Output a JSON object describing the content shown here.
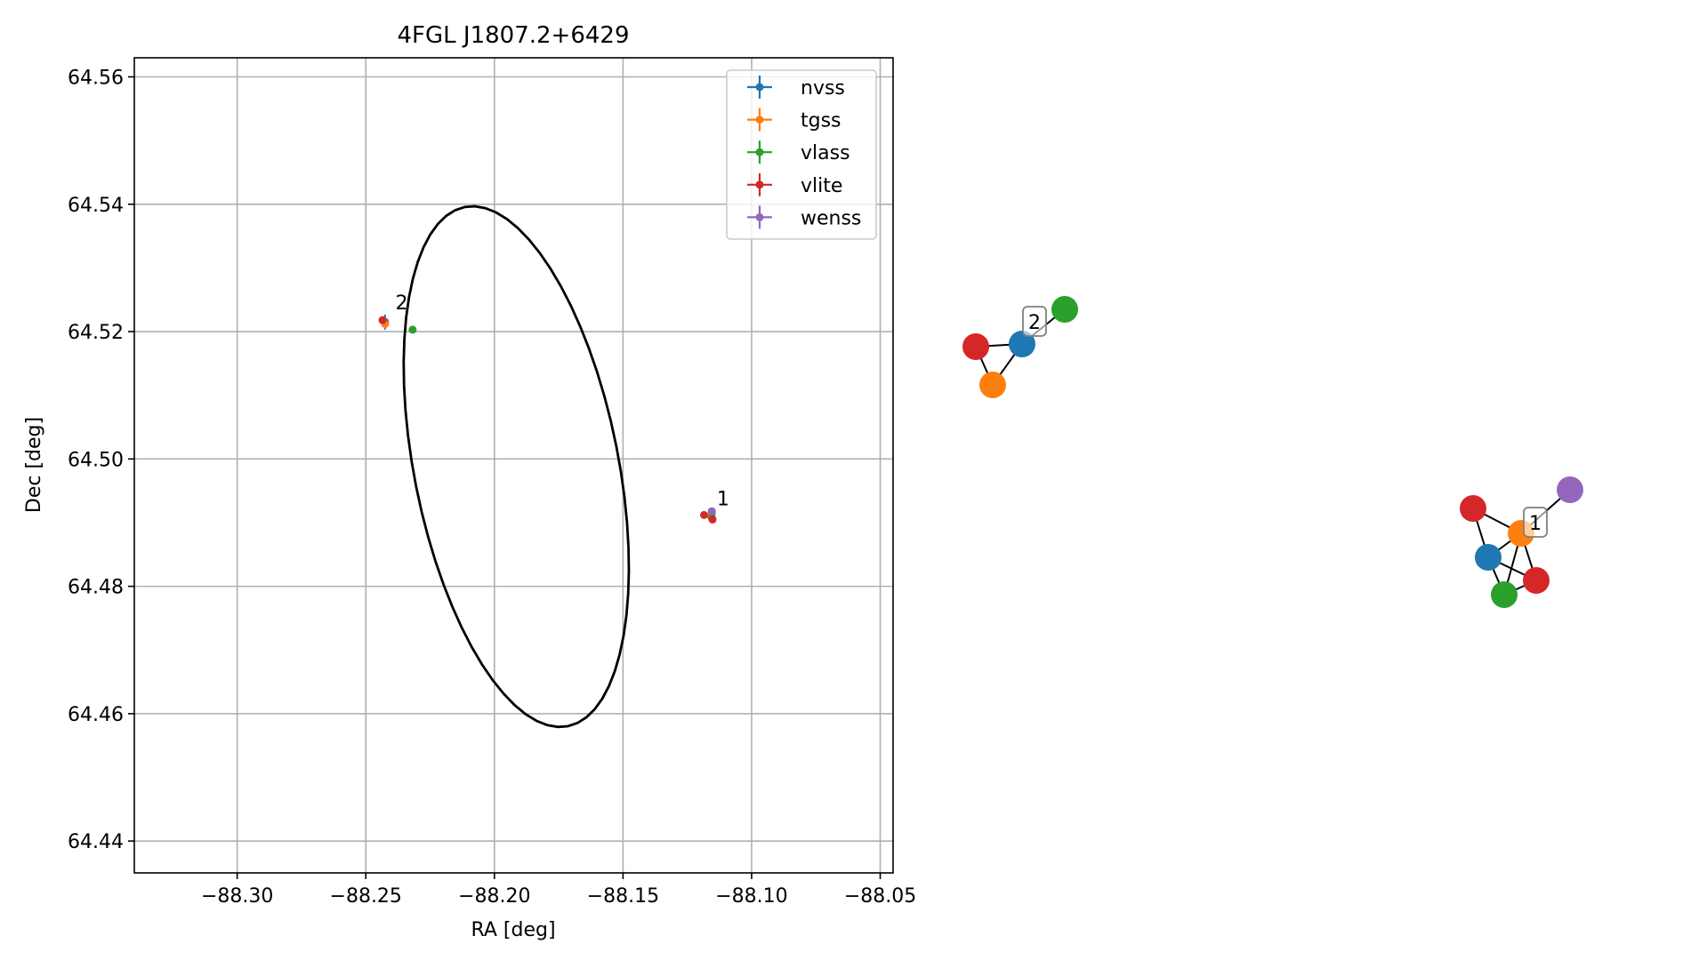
{
  "chart_data": {
    "type": "scatter",
    "title": "4FGL J1807.2+6429",
    "xlabel": "RA [deg]",
    "ylabel": "Dec [deg]",
    "xlim": [
      -88.34,
      -88.045
    ],
    "ylim": [
      64.435,
      64.563
    ],
    "xticks": [
      -88.3,
      -88.25,
      -88.2,
      -88.15,
      -88.1,
      -88.05
    ],
    "xtick_labels": [
      "−88.30",
      "−88.25",
      "−88.20",
      "−88.15",
      "−88.10",
      "−88.05"
    ],
    "yticks": [
      64.44,
      64.46,
      64.48,
      64.5,
      64.52,
      64.54,
      64.56
    ],
    "ytick_labels": [
      "64.44",
      "64.46",
      "64.48",
      "64.50",
      "64.52",
      "64.54",
      "64.56"
    ],
    "grid": true,
    "legend_position": "upper-right",
    "series": [
      {
        "name": "nvss",
        "color": "#1f77b4",
        "points": [
          {
            "x": -88.2425,
            "y": 64.5215,
            "xerr": 0.0006,
            "yerr": 0.0012
          },
          {
            "x": -88.1155,
            "y": 64.4915,
            "xerr": 0.0005,
            "yerr": 0.0006
          }
        ]
      },
      {
        "name": "tgss",
        "color": "#ff7f0e",
        "points": [
          {
            "x": -88.2425,
            "y": 64.5212,
            "xerr": 0.0004,
            "yerr": 0.0004
          },
          {
            "x": -88.1158,
            "y": 64.491,
            "xerr": 0.0004,
            "yerr": 0.0004
          }
        ]
      },
      {
        "name": "vlass",
        "color": "#2ca02c",
        "points": [
          {
            "x": -88.2318,
            "y": 64.5203,
            "xerr": 0.0002,
            "yerr": 0.0002
          },
          {
            "x": -88.1155,
            "y": 64.4908,
            "xerr": 0.0002,
            "yerr": 0.0002
          }
        ]
      },
      {
        "name": "vlite",
        "color": "#d62728",
        "points": [
          {
            "x": -88.2435,
            "y": 64.5218,
            "xerr": 0.0005,
            "yerr": 0.0005
          },
          {
            "x": -88.1185,
            "y": 64.4912,
            "xerr": 0.0004,
            "yerr": 0.0004
          },
          {
            "x": -88.1152,
            "y": 64.4905,
            "xerr": 0.0004,
            "yerr": 0.0004
          }
        ]
      },
      {
        "name": "wenss",
        "color": "#9467bd",
        "points": [
          {
            "x": -88.1155,
            "y": 64.4918,
            "xerr": 0.0005,
            "yerr": 0.0005
          }
        ]
      }
    ],
    "ellipse": {
      "center_x": -88.1915,
      "center_y": 64.4988,
      "semi_major": 0.05,
      "semi_minor": 0.033,
      "angle_deg": -40
    },
    "annotations": [
      {
        "text": "2",
        "x": -88.2385,
        "y": 64.5235
      },
      {
        "text": "1",
        "x": -88.1135,
        "y": 64.4927
      }
    ],
    "networks": [
      {
        "label": "2",
        "nodes": [
          {
            "id": "nvss",
            "color": "#1f77b4"
          },
          {
            "id": "tgss",
            "color": "#ff7f0e"
          },
          {
            "id": "vlass",
            "color": "#2ca02c"
          },
          {
            "id": "vlite",
            "color": "#d62728"
          }
        ],
        "edges": [
          [
            "vlite",
            "nvss"
          ],
          [
            "vlite",
            "tgss"
          ],
          [
            "tgss",
            "nvss"
          ],
          [
            "nvss",
            "vlass"
          ]
        ]
      },
      {
        "label": "1",
        "nodes": [
          {
            "id": "nvss",
            "color": "#1f77b4"
          },
          {
            "id": "tgss",
            "color": "#ff7f0e"
          },
          {
            "id": "vlass",
            "color": "#2ca02c"
          },
          {
            "id": "vlite_a",
            "color": "#d62728"
          },
          {
            "id": "vlite_b",
            "color": "#d62728"
          },
          {
            "id": "wenss",
            "color": "#9467bd"
          }
        ],
        "edges": [
          [
            "vlite_a",
            "tgss"
          ],
          [
            "vlite_a",
            "nvss"
          ],
          [
            "nvss",
            "tgss"
          ],
          [
            "nvss",
            "vlass"
          ],
          [
            "nvss",
            "vlite_b"
          ],
          [
            "tgss",
            "vlass"
          ],
          [
            "tgss",
            "vlite_b"
          ],
          [
            "tgss",
            "wenss"
          ],
          [
            "vlass",
            "vlite_b"
          ]
        ]
      }
    ]
  }
}
